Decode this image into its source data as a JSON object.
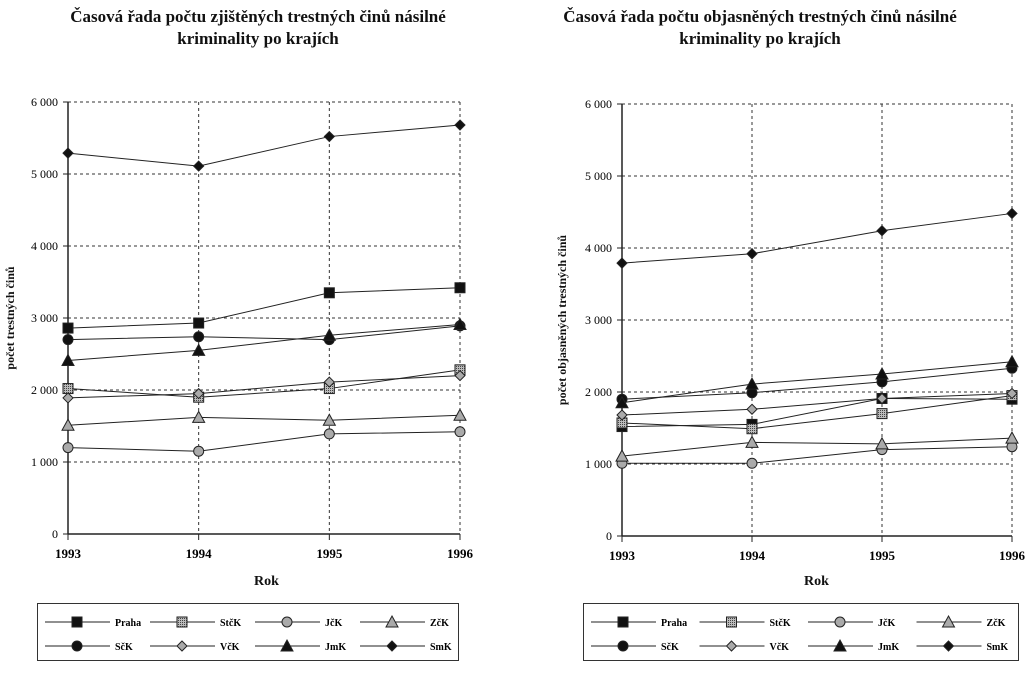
{
  "chart_data": [
    {
      "type": "line",
      "title": "Časová řada počtu zjištěných trestných činů násilné kriminality po krajích",
      "xlabel": "Rok",
      "ylabel": "počet trestných činů",
      "categories": [
        "1993",
        "1994",
        "1995",
        "1996"
      ],
      "ylim": [
        0,
        6000
      ],
      "yticks": [
        "0",
        "1 000",
        "2 000",
        "3 000",
        "4 000",
        "5 000",
        "6 000"
      ],
      "grid": true,
      "legend_position": "bottom",
      "series": [
        {
          "name": "Praha",
          "marker": "square-black",
          "values": [
            2860,
            2930,
            3350,
            3420
          ]
        },
        {
          "name": "StčK",
          "marker": "square-hatched",
          "values": [
            2020,
            1900,
            2020,
            2280
          ]
        },
        {
          "name": "JčK",
          "marker": "circle-gray",
          "values": [
            1200,
            1150,
            1390,
            1420
          ]
        },
        {
          "name": "ZčK",
          "marker": "triangle-gray",
          "values": [
            1510,
            1620,
            1580,
            1650
          ]
        },
        {
          "name": "SčK",
          "marker": "circle-black",
          "values": [
            2700,
            2740,
            2700,
            2890
          ]
        },
        {
          "name": "VčK",
          "marker": "diamond-gray",
          "values": [
            1890,
            1950,
            2110,
            2200
          ]
        },
        {
          "name": "JmK",
          "marker": "triangle-black",
          "values": [
            2410,
            2550,
            2760,
            2910
          ]
        },
        {
          "name": "SmK",
          "marker": "diamond-black",
          "values": [
            5290,
            5110,
            5520,
            5680
          ]
        }
      ]
    },
    {
      "type": "line",
      "title": "Časová řada počtu objasněných trestných činů násilné kriminality po krajích",
      "xlabel": "Rok",
      "ylabel": "počet objasněných trestných činů",
      "categories": [
        "1993",
        "1994",
        "1995",
        "1996"
      ],
      "ylim": [
        0,
        6000
      ],
      "yticks": [
        "0",
        "1 000",
        "2 000",
        "3 000",
        "4 000",
        "5 000",
        "6 000"
      ],
      "grid": true,
      "legend_position": "bottom",
      "series": [
        {
          "name": "Praha",
          "marker": "square-black",
          "values": [
            1520,
            1550,
            1910,
            1900
          ]
        },
        {
          "name": "StčK",
          "marker": "square-hatched",
          "values": [
            1570,
            1490,
            1700,
            1950
          ]
        },
        {
          "name": "JčK",
          "marker": "circle-gray",
          "values": [
            1010,
            1010,
            1200,
            1240
          ]
        },
        {
          "name": "ZčK",
          "marker": "triangle-gray",
          "values": [
            1110,
            1300,
            1280,
            1360
          ]
        },
        {
          "name": "SčK",
          "marker": "circle-black",
          "values": [
            1900,
            1990,
            2140,
            2330
          ]
        },
        {
          "name": "VčK",
          "marker": "diamond-gray",
          "values": [
            1680,
            1760,
            1910,
            1980
          ]
        },
        {
          "name": "JmK",
          "marker": "triangle-black",
          "values": [
            1850,
            2110,
            2250,
            2420
          ]
        },
        {
          "name": "SmK",
          "marker": "diamond-black",
          "values": [
            3790,
            3920,
            4240,
            4480
          ]
        }
      ]
    }
  ]
}
